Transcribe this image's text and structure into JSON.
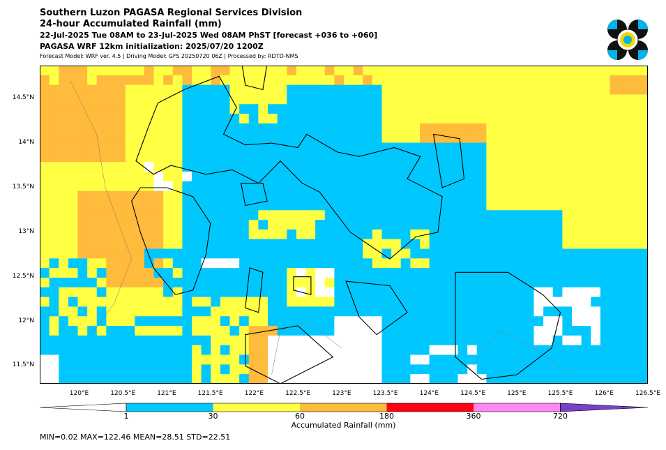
{
  "header": {
    "title": "Southern Luzon PAGASA Regional Services Division",
    "subtitle": "24-hour Accumulated Rainfall (mm)",
    "period": "22-Jul-2025 Tue 08AM to 23-Jul-2025 Wed 08AM PhST [forecast +036 to +060]",
    "init": "PAGASA WRF 12km initialization: 2025/07/20 1200Z",
    "model": "Forecast Model: WRF ver. 4.5 | Driving Model: GFS 20250720 06Z | Processed by: RDTD-NMS"
  },
  "logo": {
    "icon": "pagasa-logo-icon",
    "colors": [
      "#111111",
      "#00b4e6",
      "#f5d800"
    ]
  },
  "map": {
    "extent": {
      "lon": [
        119.55,
        126.5
      ],
      "lat": [
        11.3,
        14.87
      ]
    },
    "lat_ticks": [
      "14.5°N",
      "14°N",
      "13.5°N",
      "13°N",
      "12.5°N",
      "12°N",
      "11.5°N"
    ],
    "lat_values": [
      14.5,
      14.0,
      13.5,
      13.0,
      12.5,
      12.0,
      11.5
    ],
    "lon_ticks": [
      "120°E",
      "120.5°E",
      "121°E",
      "121.5°E",
      "122°E",
      "122.5°E",
      "123°E",
      "123.5°E",
      "124°E",
      "124.5°E",
      "125°E",
      "125.5°E",
      "126°E",
      "126.5°E"
    ],
    "lon_values": [
      120.0,
      120.5,
      121.0,
      121.5,
      122.0,
      122.5,
      123.0,
      123.5,
      124.0,
      124.5,
      125.0,
      125.5,
      126.0,
      126.5
    ]
  },
  "colorbar": {
    "label": "Accumulated Rainfall (mm)",
    "ticks": [
      "1",
      "30",
      "60",
      "180",
      "360",
      "720"
    ],
    "colors": [
      "#ffffff",
      "#00c8ff",
      "#ffff44",
      "#ffbb3c",
      "#ff0010",
      "#ff88f0",
      "#7a40c8"
    ]
  },
  "stats": "MIN=0.02   MAX=122.46   MEAN=28.51   STD=22.51"
}
